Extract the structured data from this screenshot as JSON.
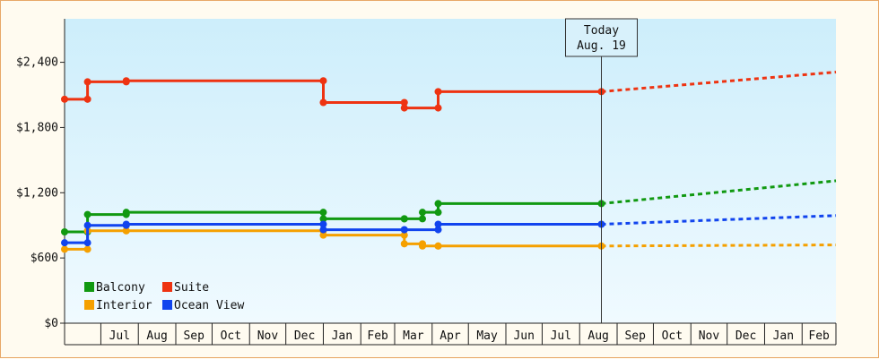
{
  "chart_data": {
    "type": "line",
    "title": "",
    "xlabel": "",
    "ylabel": "",
    "ylim": [
      0,
      2800
    ],
    "y_ticks": [
      {
        "value": 0,
        "label": "$0"
      },
      {
        "value": 600,
        "label": "$600"
      },
      {
        "value": 1200,
        "label": "$1,200"
      },
      {
        "value": 1800,
        "label": "$1,800"
      },
      {
        "value": 2400,
        "label": "$2,400"
      }
    ],
    "x_axis": {
      "start": "2013-06-01",
      "end": "2015-03-01",
      "months": [
        {
          "start": "2013-07-01",
          "label": "Jul"
        },
        {
          "start": "2013-08-01",
          "label": "Aug"
        },
        {
          "start": "2013-09-01",
          "label": "Sep"
        },
        {
          "start": "2013-10-01",
          "label": "Oct"
        },
        {
          "start": "2013-11-01",
          "label": "Nov"
        },
        {
          "start": "2013-12-01",
          "label": "Dec"
        },
        {
          "start": "2014-01-01",
          "label": "Jan"
        },
        {
          "start": "2014-02-01",
          "label": "Feb"
        },
        {
          "start": "2014-03-01",
          "label": "Mar"
        },
        {
          "start": "2014-04-01",
          "label": "Apr"
        },
        {
          "start": "2014-05-01",
          "label": "May"
        },
        {
          "start": "2014-06-01",
          "label": "Jun"
        },
        {
          "start": "2014-07-01",
          "label": "Jul"
        },
        {
          "start": "2014-08-01",
          "label": "Aug"
        },
        {
          "start": "2014-09-01",
          "label": "Sep"
        },
        {
          "start": "2014-10-01",
          "label": "Oct"
        },
        {
          "start": "2014-11-01",
          "label": "Nov"
        },
        {
          "start": "2014-12-01",
          "label": "Dec"
        },
        {
          "start": "2015-01-01",
          "label": "Jan"
        },
        {
          "start": "2015-02-01",
          "label": "Feb"
        }
      ]
    },
    "today": {
      "date": "2014-08-19",
      "line1": "Today",
      "line2": "Aug. 19"
    },
    "legend": {
      "placement": "bottom-left"
    },
    "series": [
      {
        "name": "Balcony",
        "color": "#119911",
        "points": [
          {
            "x": "2013-06-01",
            "y": 840
          },
          {
            "x": "2013-06-20",
            "y": 840
          },
          {
            "x": "2013-06-20",
            "y": 1000
          },
          {
            "x": "2013-07-22",
            "y": 1000
          },
          {
            "x": "2013-07-22",
            "y": 1020
          },
          {
            "x": "2014-01-01",
            "y": 1020
          },
          {
            "x": "2014-01-01",
            "y": 960
          },
          {
            "x": "2014-03-09",
            "y": 960
          },
          {
            "x": "2014-03-09",
            "y": 960
          },
          {
            "x": "2014-03-24",
            "y": 960
          },
          {
            "x": "2014-03-24",
            "y": 1020
          },
          {
            "x": "2014-04-06",
            "y": 1020
          },
          {
            "x": "2014-04-06",
            "y": 1100
          },
          {
            "x": "2014-08-19",
            "y": 1100
          }
        ],
        "forecast": [
          {
            "x": "2014-08-19",
            "y": 1100
          },
          {
            "x": "2015-03-01",
            "y": 1310
          }
        ]
      },
      {
        "name": "Suite",
        "color": "#ee3311",
        "points": [
          {
            "x": "2013-06-01",
            "y": 2060
          },
          {
            "x": "2013-06-20",
            "y": 2060
          },
          {
            "x": "2013-06-20",
            "y": 2220
          },
          {
            "x": "2013-07-22",
            "y": 2220
          },
          {
            "x": "2013-07-22",
            "y": 2230
          },
          {
            "x": "2014-01-01",
            "y": 2230
          },
          {
            "x": "2014-01-01",
            "y": 2030
          },
          {
            "x": "2014-03-09",
            "y": 2030
          },
          {
            "x": "2014-03-09",
            "y": 1980
          },
          {
            "x": "2014-04-06",
            "y": 1980
          },
          {
            "x": "2014-04-06",
            "y": 2130
          },
          {
            "x": "2014-08-19",
            "y": 2130
          }
        ],
        "forecast": [
          {
            "x": "2014-08-19",
            "y": 2130
          },
          {
            "x": "2015-03-01",
            "y": 2310
          }
        ]
      },
      {
        "name": "Interior",
        "color": "#f5a000",
        "points": [
          {
            "x": "2013-06-01",
            "y": 680
          },
          {
            "x": "2013-06-20",
            "y": 680
          },
          {
            "x": "2013-06-20",
            "y": 850
          },
          {
            "x": "2013-07-22",
            "y": 850
          },
          {
            "x": "2013-07-22",
            "y": 850
          },
          {
            "x": "2014-01-01",
            "y": 850
          },
          {
            "x": "2014-01-01",
            "y": 810
          },
          {
            "x": "2014-03-09",
            "y": 810
          },
          {
            "x": "2014-03-09",
            "y": 730
          },
          {
            "x": "2014-03-24",
            "y": 730
          },
          {
            "x": "2014-03-24",
            "y": 710
          },
          {
            "x": "2014-04-06",
            "y": 710
          },
          {
            "x": "2014-04-06",
            "y": 710
          },
          {
            "x": "2014-08-19",
            "y": 710
          }
        ],
        "forecast": [
          {
            "x": "2014-08-19",
            "y": 710
          },
          {
            "x": "2015-03-01",
            "y": 720
          }
        ]
      },
      {
        "name": "Ocean View",
        "color": "#1144ee",
        "points": [
          {
            "x": "2013-06-01",
            "y": 740
          },
          {
            "x": "2013-06-20",
            "y": 740
          },
          {
            "x": "2013-06-20",
            "y": 900
          },
          {
            "x": "2013-07-22",
            "y": 900
          },
          {
            "x": "2013-07-22",
            "y": 910
          },
          {
            "x": "2014-01-01",
            "y": 910
          },
          {
            "x": "2014-01-01",
            "y": 860
          },
          {
            "x": "2014-03-09",
            "y": 860
          },
          {
            "x": "2014-03-09",
            "y": 860
          },
          {
            "x": "2014-04-06",
            "y": 860
          },
          {
            "x": "2014-04-06",
            "y": 910
          },
          {
            "x": "2014-08-19",
            "y": 910
          }
        ],
        "forecast": [
          {
            "x": "2014-08-19",
            "y": 910
          },
          {
            "x": "2015-03-01",
            "y": 990
          }
        ]
      }
    ]
  }
}
